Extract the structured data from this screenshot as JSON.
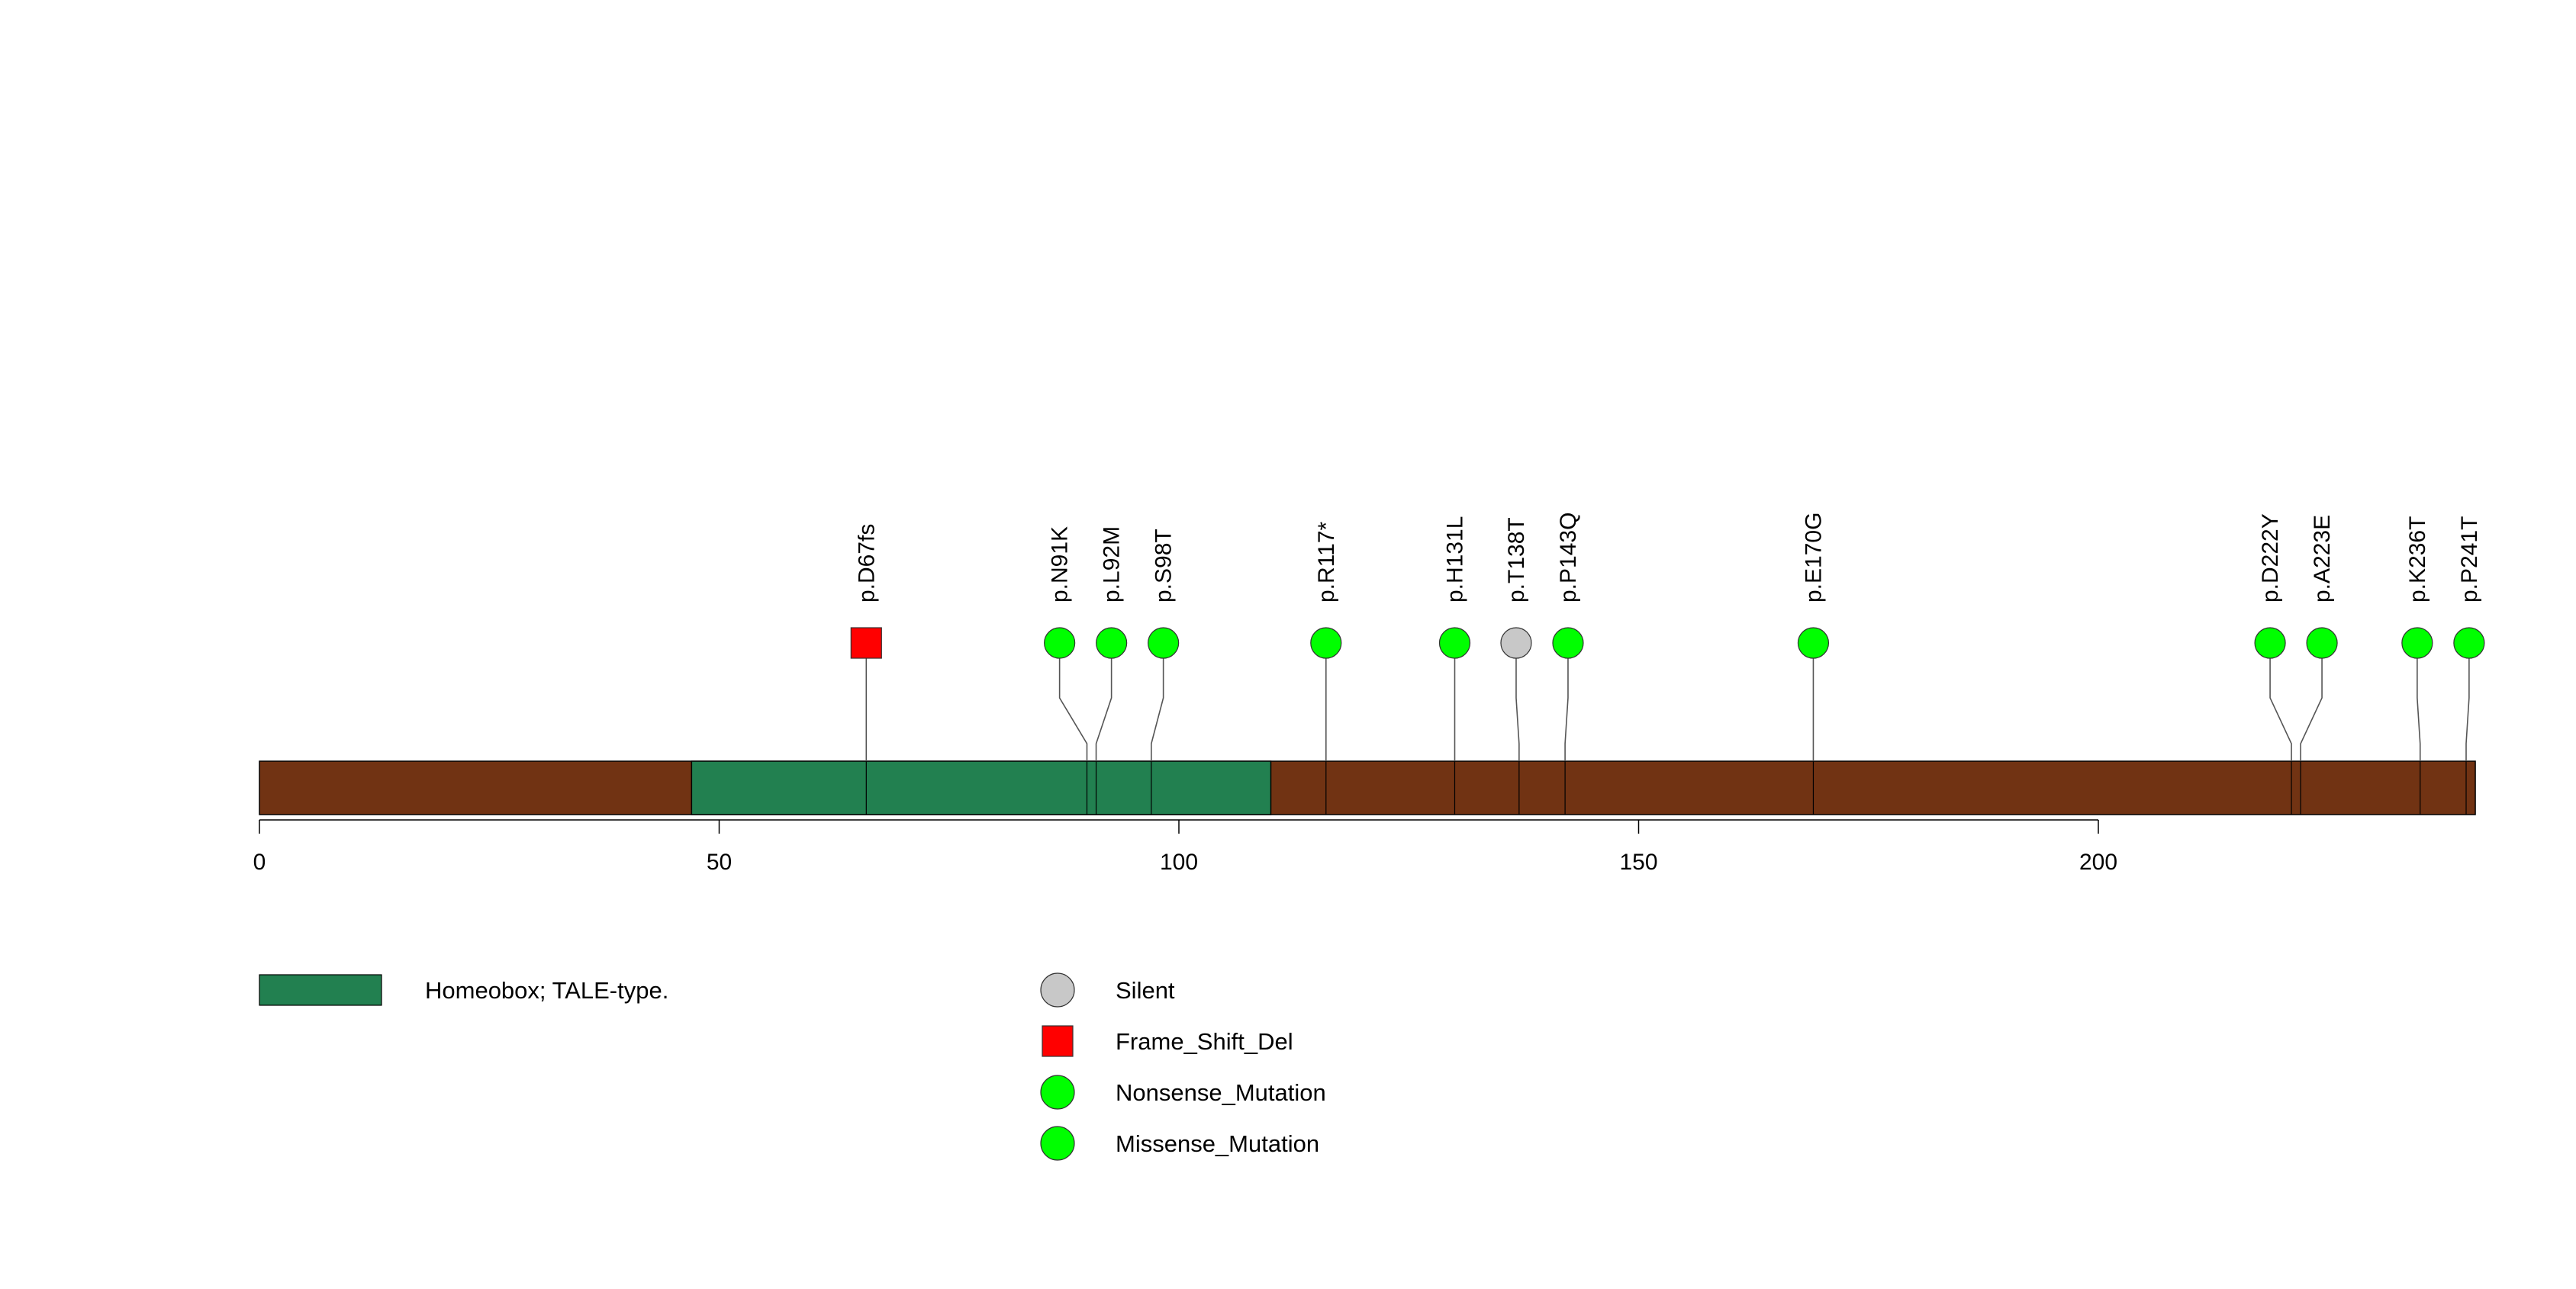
{
  "chart_data": {
    "type": "lollipop",
    "protein_length": 241,
    "xlim": [
      0,
      241
    ],
    "x_ticks": [
      0,
      50,
      100,
      150,
      200
    ],
    "backbone_color": "#713313",
    "domains": [
      {
        "name": "Homeobox; TALE-type.",
        "start": 47,
        "end": 110,
        "color": "#228050"
      }
    ],
    "mutation_types": [
      {
        "name": "Silent",
        "shape": "circle",
        "color": "#c8c8c8"
      },
      {
        "name": "Frame_Shift_Del",
        "shape": "square",
        "color": "#ff0000"
      },
      {
        "name": "Nonsense_Mutation",
        "shape": "circle",
        "color": "#00ff00"
      },
      {
        "name": "Missense_Mutation",
        "shape": "circle",
        "color": "#00ff00"
      }
    ],
    "mutations": [
      {
        "label": "p.D67fs",
        "position": 66,
        "type": "Frame_Shift_Del"
      },
      {
        "label": "p.N91K",
        "position": 90,
        "type": "Missense_Mutation"
      },
      {
        "label": "p.L92M",
        "position": 91,
        "type": "Missense_Mutation"
      },
      {
        "label": "p.S98T",
        "position": 97,
        "type": "Missense_Mutation"
      },
      {
        "label": "p.R117*",
        "position": 116,
        "type": "Nonsense_Mutation"
      },
      {
        "label": "p.H131L",
        "position": 130,
        "type": "Missense_Mutation"
      },
      {
        "label": "p.T138T",
        "position": 137,
        "type": "Silent"
      },
      {
        "label": "p.P143Q",
        "position": 142,
        "type": "Missense_Mutation"
      },
      {
        "label": "p.E170G",
        "position": 169,
        "type": "Missense_Mutation"
      },
      {
        "label": "p.D222Y",
        "position": 221,
        "type": "Missense_Mutation"
      },
      {
        "label": "p.A223E",
        "position": 222,
        "type": "Missense_Mutation"
      },
      {
        "label": "p.K236T",
        "position": 235,
        "type": "Missense_Mutation"
      },
      {
        "label": "p.P241T",
        "position": 240,
        "type": "Missense_Mutation"
      }
    ],
    "legend": {
      "domains": [
        {
          "name": "Homeobox; TALE-type.",
          "color": "#228050"
        }
      ],
      "mutations": [
        "Silent",
        "Frame_Shift_Del",
        "Nonsense_Mutation",
        "Missense_Mutation"
      ]
    }
  }
}
